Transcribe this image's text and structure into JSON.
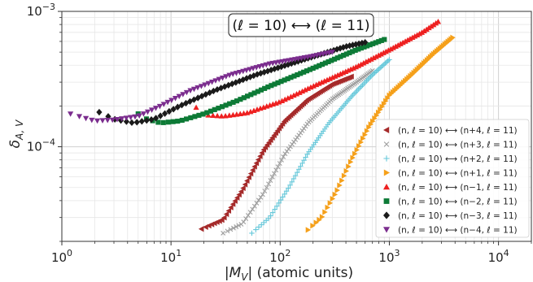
{
  "chart_data": {
    "type": "scatter",
    "title": "(ℓ = 10) ⟷ (ℓ = 11)",
    "xlabel": "|M_V| (atomic units)",
    "ylabel": "δ_{A,V}",
    "xscale": "log",
    "yscale": "log",
    "xlim": [
      1,
      20000
    ],
    "ylim": [
      2e-05,
      0.001
    ],
    "grid": true,
    "legend": "lower-right",
    "x_ticks": [
      {
        "value": 1,
        "base": "10",
        "exp": "0"
      },
      {
        "value": 10,
        "base": "10",
        "exp": "1"
      },
      {
        "value": 100,
        "base": "10",
        "exp": "2"
      },
      {
        "value": 1000,
        "base": "10",
        "exp": "3"
      },
      {
        "value": 10000,
        "base": "10",
        "exp": "4"
      }
    ],
    "y_ticks": [
      {
        "value": 0.0001,
        "base": "10",
        "exp": "−4"
      },
      {
        "value": 0.001,
        "base": "10",
        "exp": "−3"
      }
    ],
    "series": [
      {
        "name": "(n, ℓ = 10) ⟷ (n+4, ℓ = 11)",
        "color": "#a52a2a",
        "marker": "triangle-left",
        "anchors": [
          [
            19,
            2.47e-05
          ],
          [
            30,
            2.9e-05
          ],
          [
            45,
            4.8e-05
          ],
          [
            70,
            9.4e-05
          ],
          [
            110,
            0.000155
          ],
          [
            180,
            0.000224
          ],
          [
            300,
            0.00029
          ],
          [
            450,
            0.00033
          ]
        ],
        "count": 85
      },
      {
        "name": "(n, ℓ = 10) ⟷ (n+3, ℓ = 11)",
        "color": "#9e9e9e",
        "marker": "x",
        "anchors": [
          [
            30,
            2.3e-05
          ],
          [
            45,
            2.7e-05
          ],
          [
            70,
            4.5e-05
          ],
          [
            110,
            8.8e-05
          ],
          [
            180,
            0.00015
          ],
          [
            300,
            0.000225
          ],
          [
            500,
            0.0003
          ],
          [
            700,
            0.000365
          ]
        ],
        "count": 85
      },
      {
        "name": "(n, ℓ = 10) ⟷ (n+2, ℓ = 11)",
        "color": "#66c8da",
        "marker": "+",
        "anchors": [
          [
            55,
            2.3e-05
          ],
          [
            80,
            3e-05
          ],
          [
            120,
            5e-05
          ],
          [
            180,
            9e-05
          ],
          [
            280,
            0.00015
          ],
          [
            450,
            0.000235
          ],
          [
            700,
            0.00034
          ],
          [
            1000,
            0.00044
          ]
        ],
        "count": 85
      },
      {
        "name": "(n, ℓ = 10) ⟷ (n+1, ℓ = 11)",
        "color": "#f5a01a",
        "marker": "triangle-right",
        "anchors": [
          [
            180,
            2.43e-05
          ],
          [
            240,
            3e-05
          ],
          [
            330,
            4.7e-05
          ],
          [
            450,
            8e-05
          ],
          [
            650,
            0.00014
          ],
          [
            1000,
            0.00024
          ],
          [
            1600,
            0.00034
          ],
          [
            2500,
            0.00048
          ],
          [
            3800,
            0.00064
          ]
        ],
        "count": 75
      },
      {
        "name": "(n, ℓ = 10) ⟷ (n−1, ℓ = 11)",
        "color": "#ee2020",
        "marker": "triangle-up",
        "anchors": [
          [
            17,
            0.000195
          ],
          [
            20,
            0.000172
          ],
          [
            30,
            0.000168
          ],
          [
            50,
            0.000178
          ],
          [
            100,
            0.000215
          ],
          [
            200,
            0.00028
          ],
          [
            500,
            0.00039
          ],
          [
            1000,
            0.00052
          ],
          [
            2000,
            0.0007
          ],
          [
            2800,
            0.00084
          ]
        ],
        "count": 85
      },
      {
        "name": "(n, ℓ = 10) ⟷ (n−2, ℓ = 11)",
        "color": "#0d7a36",
        "marker": "square",
        "anchors": [
          [
            5,
            0.000175
          ],
          [
            6,
            0.00016
          ],
          [
            8,
            0.00015
          ],
          [
            12,
            0.000155
          ],
          [
            20,
            0.000175
          ],
          [
            40,
            0.000218
          ],
          [
            80,
            0.00028
          ],
          [
            200,
            0.00038
          ],
          [
            500,
            0.00052
          ],
          [
            900,
            0.00062
          ]
        ],
        "count": 70
      },
      {
        "name": "(n, ℓ = 10) ⟷ (n−3, ℓ = 11)",
        "color": "#1a1a1a",
        "marker": "diamond",
        "anchors": [
          [
            2.2,
            0.00018
          ],
          [
            3,
            0.00016
          ],
          [
            4.5,
            0.00015
          ],
          [
            7,
            0.00016
          ],
          [
            12,
            0.0002
          ],
          [
            25,
            0.00026
          ],
          [
            60,
            0.00034
          ],
          [
            150,
            0.00043
          ],
          [
            400,
            0.00055
          ],
          [
            600,
            0.00059
          ]
        ],
        "count": 70
      },
      {
        "name": "(n, ℓ = 10) ⟷ (n−4, ℓ = 11)",
        "color": "#7b2d8e",
        "marker": "triangle-down",
        "anchors": [
          [
            1.2,
            0.000175
          ],
          [
            2,
            0.000155
          ],
          [
            3,
            0.000158
          ],
          [
            5,
            0.000168
          ],
          [
            8,
            0.0002
          ],
          [
            15,
            0.00026
          ],
          [
            35,
            0.00034
          ],
          [
            80,
            0.00041
          ],
          [
            180,
            0.00046
          ],
          [
            300,
            0.0005
          ]
        ],
        "count": 70
      }
    ]
  }
}
